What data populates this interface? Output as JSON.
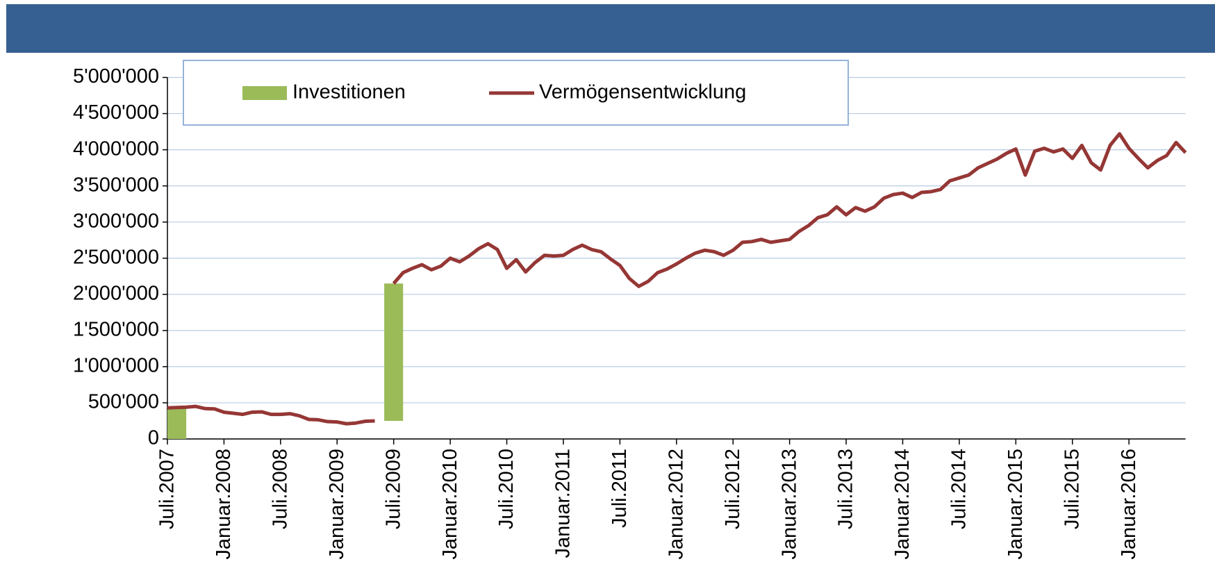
{
  "chart_data": {
    "type": "bar-line",
    "categories": [
      "Juli.2007",
      null,
      null,
      null,
      null,
      null,
      "Januar.2008",
      null,
      null,
      null,
      null,
      null,
      "Juli.2008",
      null,
      null,
      null,
      null,
      null,
      "Januar.2009",
      null,
      null,
      null,
      null,
      null,
      "Juli.2009",
      null,
      null,
      null,
      null,
      null,
      "Januar.2010",
      null,
      null,
      null,
      null,
      null,
      "Juli.2010",
      null,
      null,
      null,
      null,
      null,
      "Januar.2011",
      null,
      null,
      null,
      null,
      null,
      "Juli.2011",
      null,
      null,
      null,
      null,
      null,
      "Januar.2012",
      null,
      null,
      null,
      null,
      null,
      "Juli.2012",
      null,
      null,
      null,
      null,
      null,
      "Januar.2013",
      null,
      null,
      null,
      null,
      null,
      "Juli.2013",
      null,
      null,
      null,
      null,
      null,
      "Januar.2014",
      null,
      null,
      null,
      null,
      null,
      "Juli.2014",
      null,
      null,
      null,
      null,
      null,
      "Januar.2015",
      null,
      null,
      null,
      null,
      null,
      "Juli.2015",
      null,
      null,
      null,
      null,
      null,
      "Januar.2016",
      null,
      null,
      null,
      null,
      null,
      null
    ],
    "series": [
      {
        "name": "Investitionen",
        "type": "bar",
        "color": "#9bbb59",
        "values": [
          430000,
          null,
          null,
          null,
          null,
          null,
          null,
          null,
          null,
          null,
          null,
          null,
          null,
          null,
          null,
          null,
          null,
          null,
          null,
          null,
          null,
          null,
          null,
          1900000,
          null,
          null,
          null,
          null,
          null,
          null,
          null,
          null,
          null,
          null,
          null,
          null,
          null,
          null,
          null,
          null,
          null,
          null,
          null,
          null,
          null,
          null,
          null,
          null,
          null,
          null,
          null,
          null,
          null,
          null,
          null,
          null,
          null,
          null,
          null,
          null,
          null,
          null,
          null,
          null,
          null,
          null,
          null,
          null,
          null,
          null,
          null,
          null,
          null,
          null,
          null,
          null,
          null,
          null,
          null,
          null,
          null,
          null,
          null,
          null,
          null,
          null,
          null,
          null,
          null,
          null,
          null,
          null,
          null,
          null,
          null,
          null,
          null,
          null,
          null,
          null,
          null,
          null,
          null,
          null,
          null,
          null,
          null,
          null,
          null
        ]
      },
      {
        "name": "Vermögensentwicklung",
        "type": "line",
        "color": "#953735",
        "values": [
          430000,
          435000,
          440000,
          450000,
          420000,
          415000,
          370000,
          355000,
          340000,
          370000,
          375000,
          340000,
          340000,
          350000,
          320000,
          270000,
          265000,
          240000,
          235000,
          210000,
          220000,
          245000,
          250000,
          null,
          2150000,
          2300000,
          2360000,
          2410000,
          2340000,
          2390000,
          2500000,
          2450000,
          2530000,
          2630000,
          2700000,
          2620000,
          2360000,
          2480000,
          2310000,
          2440000,
          2540000,
          2530000,
          2540000,
          2620000,
          2680000,
          2620000,
          2590000,
          2490000,
          2400000,
          2220000,
          2110000,
          2180000,
          2300000,
          2350000,
          2420000,
          2500000,
          2570000,
          2610000,
          2590000,
          2540000,
          2610000,
          2720000,
          2730000,
          2760000,
          2720000,
          2740000,
          2760000,
          2870000,
          2950000,
          3060000,
          3100000,
          3210000,
          3100000,
          3200000,
          3150000,
          3210000,
          3330000,
          3380000,
          3400000,
          3340000,
          3410000,
          3420000,
          3450000,
          3570000,
          3610000,
          3650000,
          3750000,
          3810000,
          3870000,
          3950000,
          4010000,
          3650000,
          3980000,
          4020000,
          3970000,
          4010000,
          3880000,
          4060000,
          3820000,
          3720000,
          4060000,
          4220000,
          4020000,
          3880000,
          3750000,
          3850000,
          3920000,
          4100000,
          3960000
        ]
      }
    ],
    "ylim": [
      0,
      5000000
    ],
    "yticks": [
      0,
      {
        "value": 500000,
        "label": "500'000"
      },
      {
        "value": 1000000,
        "label": "1'000'000"
      },
      {
        "value": 1500000,
        "label": "1'500'000"
      },
      {
        "value": 2000000,
        "label": "2'000'000"
      },
      {
        "value": 2500000,
        "label": "2'500'000"
      },
      {
        "value": 3000000,
        "label": "3'000'000"
      },
      {
        "value": 3500000,
        "label": "3'500'000"
      },
      {
        "value": 4000000,
        "label": "4'000'000"
      },
      {
        "value": 4500000,
        "label": "4'500'000"
      },
      {
        "value": 5000000,
        "label": "5'000'000"
      }
    ],
    "grid": true,
    "legend": "top"
  }
}
